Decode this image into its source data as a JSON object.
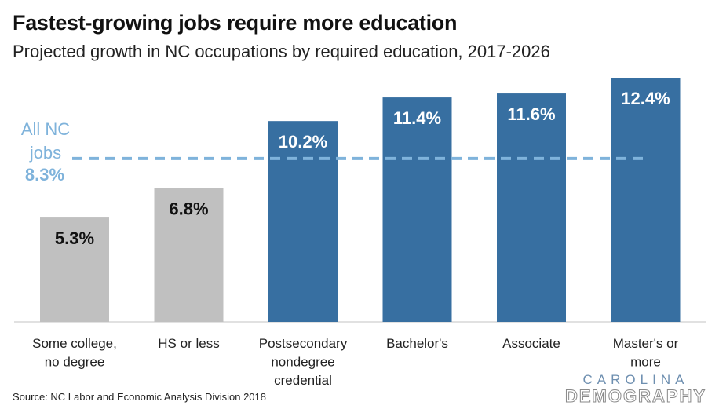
{
  "title": "Fastest-growing jobs require more education",
  "subtitle": "Projected growth in NC occupations by required education, 2017-2026",
  "source": "Source: NC Labor and Economic Analysis Division 2018",
  "logo": {
    "top": "CAROLINA",
    "bottom": "DEMOGRAPHY"
  },
  "chart_data": {
    "type": "bar",
    "categories": [
      [
        "Some college,",
        "no degree"
      ],
      [
        "HS or less"
      ],
      [
        "Postsecondary",
        "nondegree",
        "credential"
      ],
      [
        "Bachelor's"
      ],
      [
        "Associate"
      ],
      [
        "Master's or",
        "more"
      ]
    ],
    "values": [
      5.3,
      6.8,
      10.2,
      11.4,
      11.6,
      12.4
    ],
    "value_labels": [
      "5.3%",
      "6.8%",
      "10.2%",
      "11.4%",
      "11.6%",
      "12.4%"
    ],
    "bar_colors": [
      "#c0c0c0",
      "#c0c0c0",
      "#376fa1",
      "#376fa1",
      "#376fa1",
      "#376fa1"
    ],
    "label_colors": [
      "#111111",
      "#111111",
      "#ffffff",
      "#ffffff",
      "#ffffff",
      "#ffffff"
    ],
    "reference_line": {
      "value": 8.3,
      "label_lines": [
        "All NC",
        "jobs"
      ],
      "value_label": "8.3%",
      "color": "#7fb3db",
      "style": "dashed"
    },
    "ylim": [
      0,
      12.4
    ],
    "grid": false,
    "legend": "none"
  }
}
